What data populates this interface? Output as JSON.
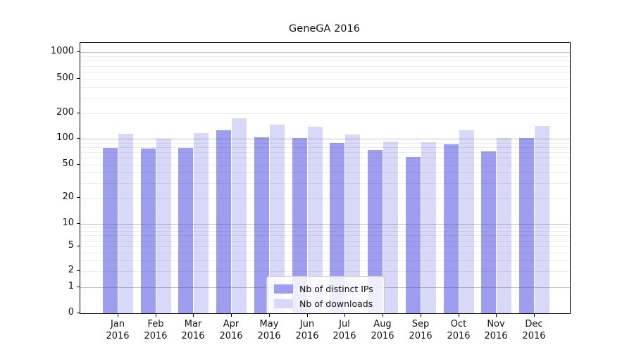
{
  "title": "GeneGA 2016",
  "legend": {
    "items": [
      {
        "label": "Nb of distinct IPs",
        "color": "#9e9ef0"
      },
      {
        "label": "Nb of downloads",
        "color": "#d8d8f8"
      }
    ]
  },
  "axes": {
    "y_ticks": [
      0,
      1,
      2,
      5,
      10,
      20,
      50,
      100,
      200,
      500,
      1000
    ],
    "x_ticks": [
      {
        "month": "Jan",
        "year": "2016"
      },
      {
        "month": "Feb",
        "year": "2016"
      },
      {
        "month": "Mar",
        "year": "2016"
      },
      {
        "month": "Apr",
        "year": "2016"
      },
      {
        "month": "May",
        "year": "2016"
      },
      {
        "month": "Jun",
        "year": "2016"
      },
      {
        "month": "Jul",
        "year": "2016"
      },
      {
        "month": "Aug",
        "year": "2016"
      },
      {
        "month": "Sep",
        "year": "2016"
      },
      {
        "month": "Oct",
        "year": "2016"
      },
      {
        "month": "Nov",
        "year": "2016"
      },
      {
        "month": "Dec",
        "year": "2016"
      }
    ]
  },
  "chart_data": {
    "type": "bar",
    "title": "GeneGA 2016",
    "categories": [
      "Jan 2016",
      "Feb 2016",
      "Mar 2016",
      "Apr 2016",
      "May 2016",
      "Jun 2016",
      "Jul 2016",
      "Aug 2016",
      "Sep 2016",
      "Oct 2016",
      "Nov 2016",
      "Dec 2016"
    ],
    "series": [
      {
        "name": "Nb of distinct IPs",
        "color": "#9e9ef0",
        "values": [
          78,
          77,
          78,
          127,
          104,
          102,
          89,
          74,
          62,
          86,
          72,
          101
        ]
      },
      {
        "name": "Nb of downloads",
        "color": "#d8d8f8",
        "values": [
          114,
          100,
          117,
          174,
          147,
          138,
          113,
          93,
          91,
          127,
          102,
          142
        ]
      }
    ],
    "xlabel": "",
    "ylabel": "",
    "yscale": "symlog",
    "ytick_values": [
      0,
      1,
      2,
      5,
      10,
      20,
      50,
      100,
      200,
      500,
      1000
    ],
    "ylim": [
      0,
      1400
    ],
    "grid": true,
    "legend_position": "inside lower-center"
  }
}
